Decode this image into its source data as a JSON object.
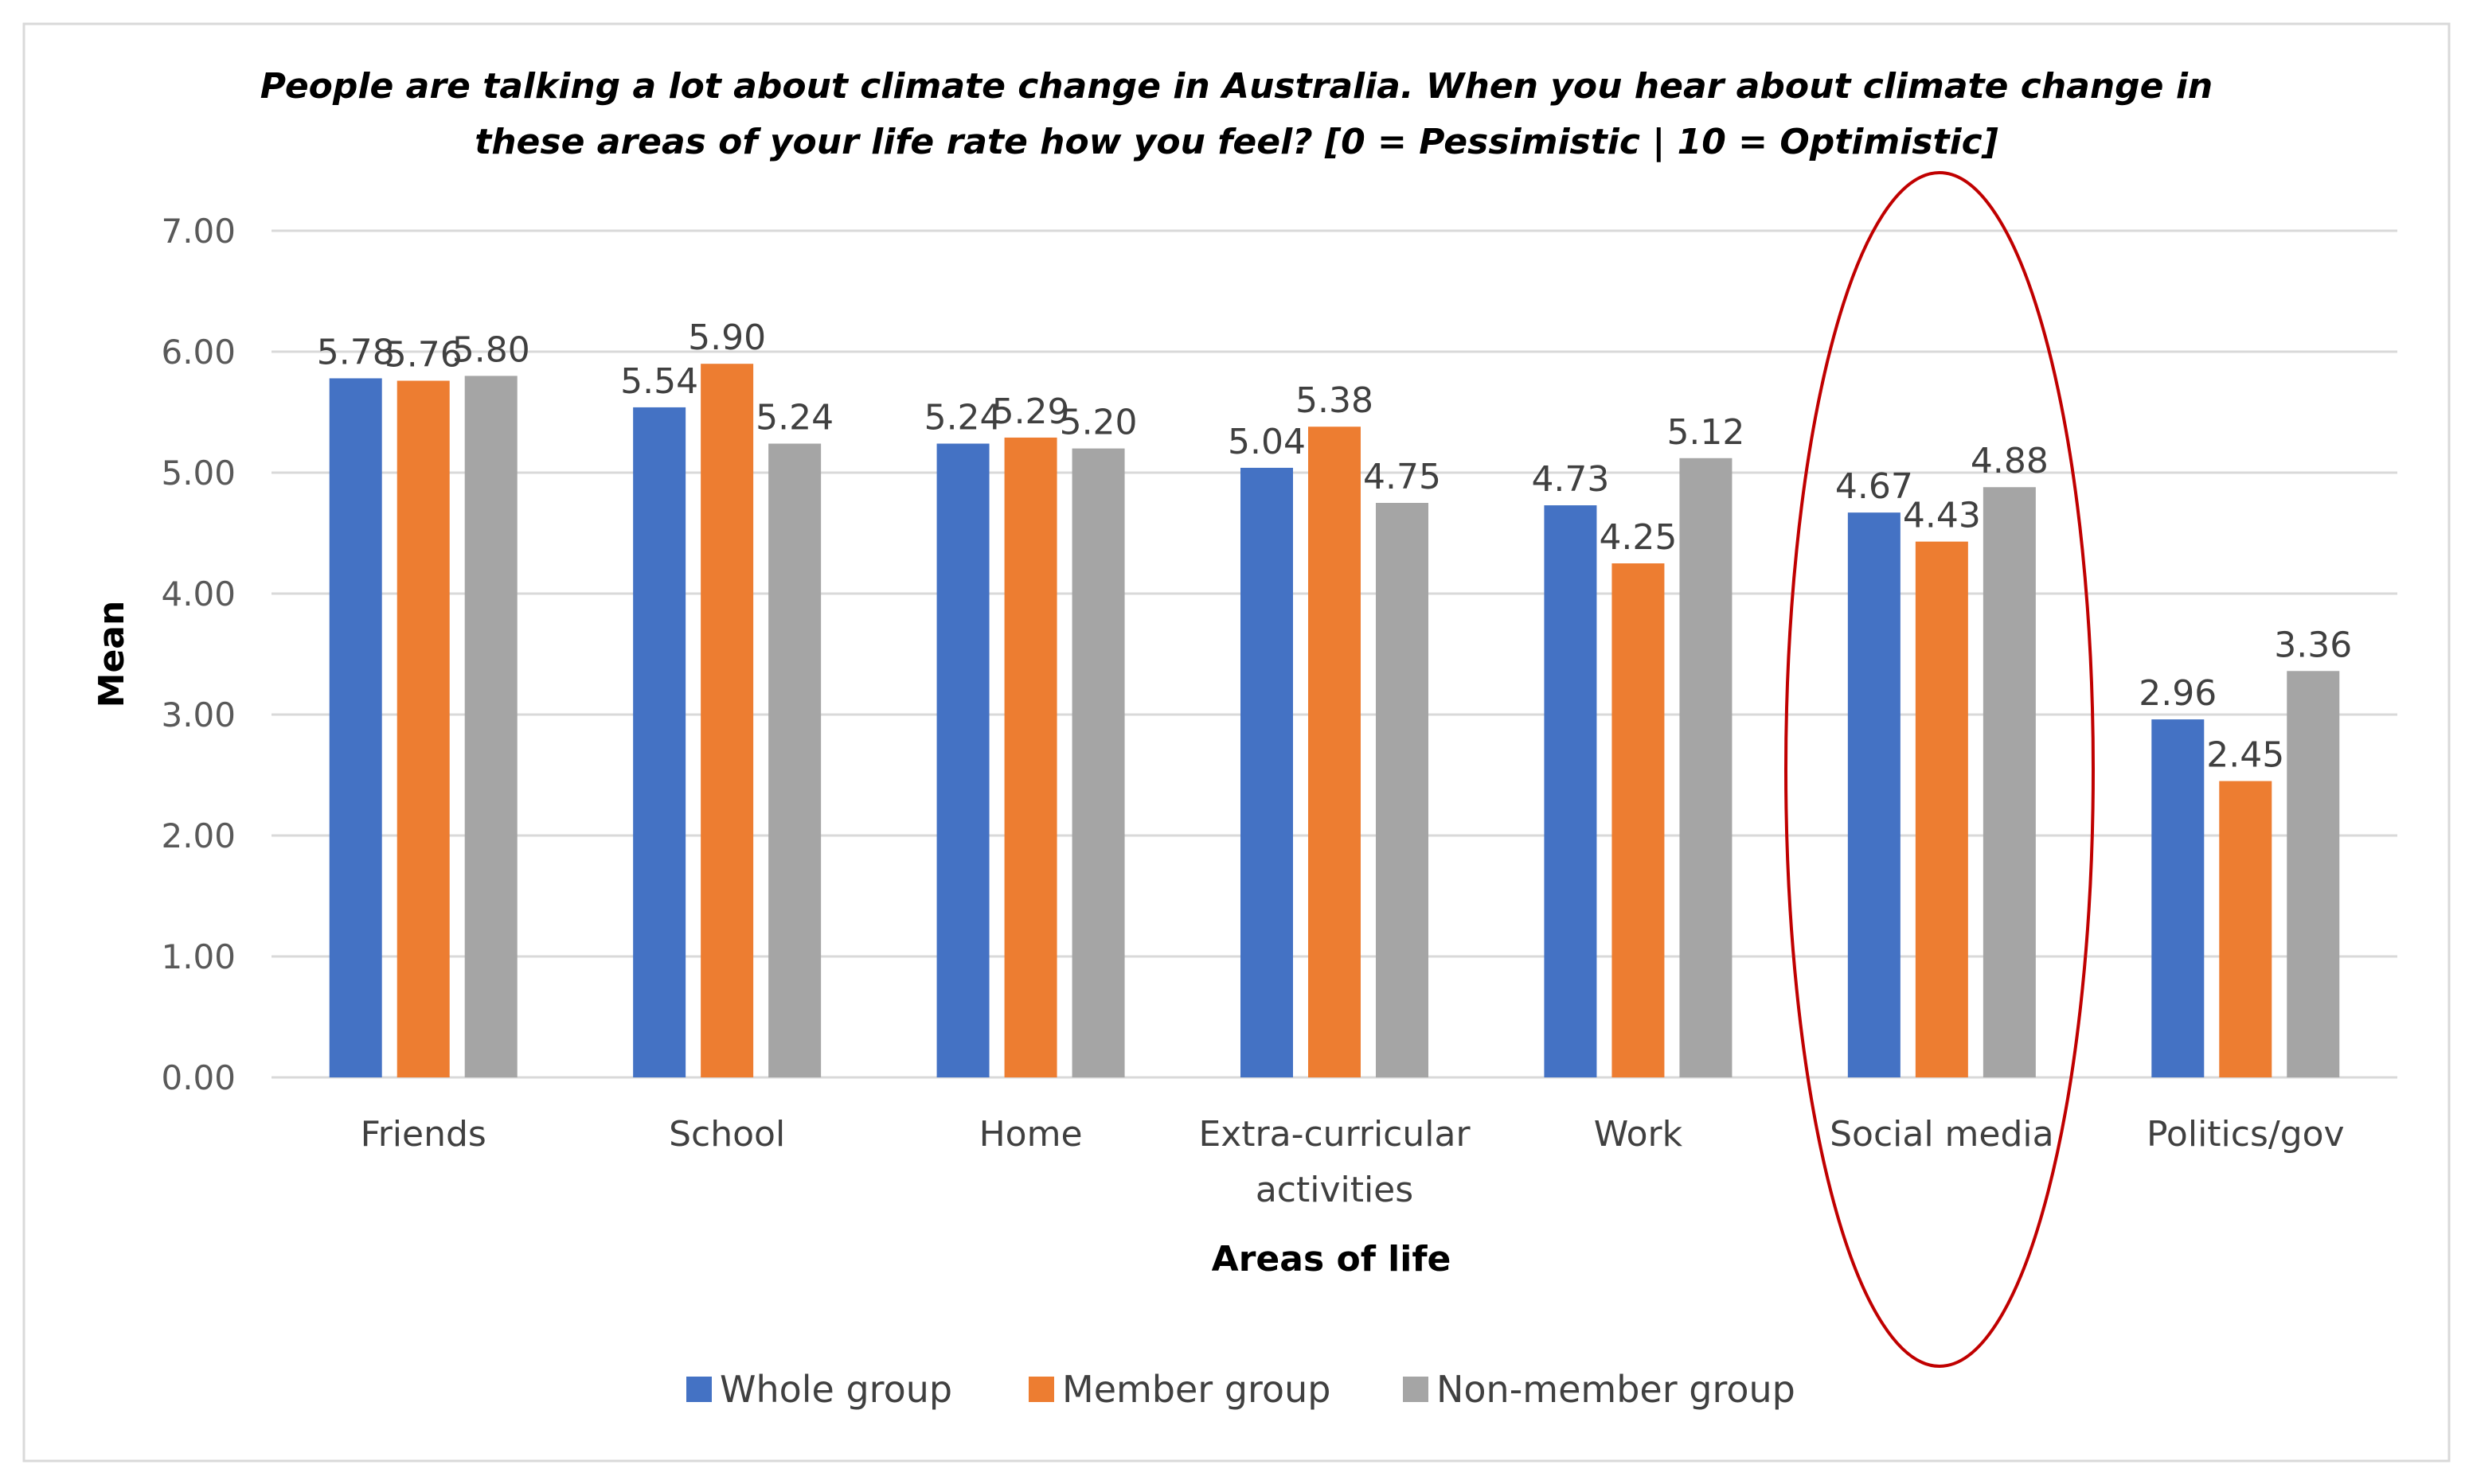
{
  "chart_data": {
    "type": "bar",
    "title_lines": [
      "People are talking a lot about  climate change in Australia. When you hear about climate change in",
      "these areas of your life rate how you feel? [0 = Pessimistic | 10 = Optimistic]"
    ],
    "xlabel": "Areas of life",
    "ylabel": "Mean",
    "ylim": [
      0,
      7
    ],
    "yticks": [
      "0.00",
      "1.00",
      "2.00",
      "3.00",
      "4.00",
      "5.00",
      "6.00",
      "7.00"
    ],
    "grid": true,
    "legend_position": "bottom",
    "categories": [
      [
        "Friends"
      ],
      [
        "School"
      ],
      [
        "Home"
      ],
      [
        "Extra-curricular",
        "activities"
      ],
      [
        "Work"
      ],
      [
        "Social media"
      ],
      [
        "Politics/gov"
      ]
    ],
    "series": [
      {
        "name": "Whole group",
        "color": "#4472C4",
        "values": [
          5.78,
          5.54,
          5.24,
          5.04,
          4.73,
          4.67,
          2.96
        ]
      },
      {
        "name": "Member group",
        "color": "#ED7D31",
        "values": [
          5.76,
          5.9,
          5.29,
          5.38,
          4.25,
          4.43,
          2.45
        ]
      },
      {
        "name": "Non-member group",
        "color": "#A5A5A5",
        "values": [
          5.8,
          5.24,
          5.2,
          4.75,
          5.12,
          4.88,
          3.36
        ]
      }
    ],
    "annotation": {
      "type": "ellipse",
      "highlighted_category": "Social media",
      "color": "#C00000"
    }
  }
}
